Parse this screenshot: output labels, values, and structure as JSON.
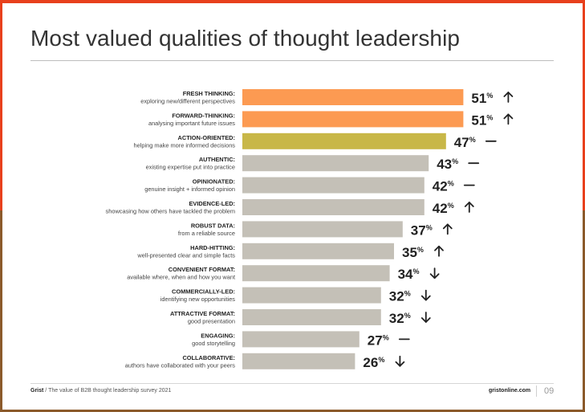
{
  "colors": {
    "highlight_orange": "#fc9a52",
    "highlight_olive": "#c8b748",
    "bar_grey": "#c4c0b7",
    "text_dark": "#222222",
    "text_mid": "#444444"
  },
  "header": {
    "title": "Most valued qualities of thought leadership"
  },
  "footer": {
    "brand": "Grist",
    "separator": "/",
    "survey": "The value of B2B thought leadership survey 2021",
    "website": "gristonline.com",
    "page_number": "09"
  },
  "chart_data": {
    "type": "bar",
    "orientation": "horizontal",
    "title": "Most valued qualities of thought leadership",
    "unit": "%",
    "xlim": [
      0,
      100
    ],
    "grid": false,
    "legend": "none",
    "categories": [
      {
        "label": "FRESH THINKING:",
        "description": "exploring new/different perspectives",
        "value": 51,
        "trend": "up",
        "trend_icon": "arrow-up-icon",
        "color": "#fc9a52"
      },
      {
        "label": "FORWARD-THINKING:",
        "description": "analysing important future issues",
        "value": 51,
        "trend": "up",
        "trend_icon": "arrow-up-icon",
        "color": "#fc9a52"
      },
      {
        "label": "ACTION-ORIENTED:",
        "description": "helping make more informed decisions",
        "value": 47,
        "trend": "flat",
        "trend_icon": "dash-icon",
        "color": "#c8b748"
      },
      {
        "label": "AUTHENTIC:",
        "description": "existing expertise put into practice",
        "value": 43,
        "trend": "flat",
        "trend_icon": "dash-icon",
        "color": "#c4c0b7"
      },
      {
        "label": "OPINIONATED:",
        "description": "genuine insight + informed opinion",
        "value": 42,
        "trend": "flat",
        "trend_icon": "dash-icon",
        "color": "#c4c0b7"
      },
      {
        "label": "EVIDENCE-LED:",
        "description": "showcasing how others have tackled the problem",
        "value": 42,
        "trend": "up",
        "trend_icon": "arrow-up-icon",
        "color": "#c4c0b7"
      },
      {
        "label": "ROBUST DATA:",
        "description": "from a reliable source",
        "value": 37,
        "trend": "up",
        "trend_icon": "arrow-up-icon",
        "color": "#c4c0b7"
      },
      {
        "label": "HARD-HITTING:",
        "description": "well-presented clear and simple facts",
        "value": 35,
        "trend": "up",
        "trend_icon": "arrow-up-icon",
        "color": "#c4c0b7"
      },
      {
        "label": "CONVENIENT FORMAT:",
        "description": "available where, when and how you want",
        "value": 34,
        "trend": "down",
        "trend_icon": "arrow-down-icon",
        "color": "#c4c0b7"
      },
      {
        "label": "COMMERCIALLY-LED:",
        "description": "identifying new opportunities",
        "value": 32,
        "trend": "down",
        "trend_icon": "arrow-down-icon",
        "color": "#c4c0b7"
      },
      {
        "label": "ATTRACTIVE FORMAT:",
        "description": "good presentation",
        "value": 32,
        "trend": "down",
        "trend_icon": "arrow-down-icon",
        "color": "#c4c0b7"
      },
      {
        "label": "ENGAGING:",
        "description": "good storytelling",
        "value": 27,
        "trend": "flat",
        "trend_icon": "dash-icon",
        "color": "#c4c0b7"
      },
      {
        "label": "COLLABORATIVE:",
        "description": "authors have collaborated with your peers",
        "value": 26,
        "trend": "down",
        "trend_icon": "arrow-down-icon",
        "color": "#c4c0b7"
      }
    ]
  }
}
